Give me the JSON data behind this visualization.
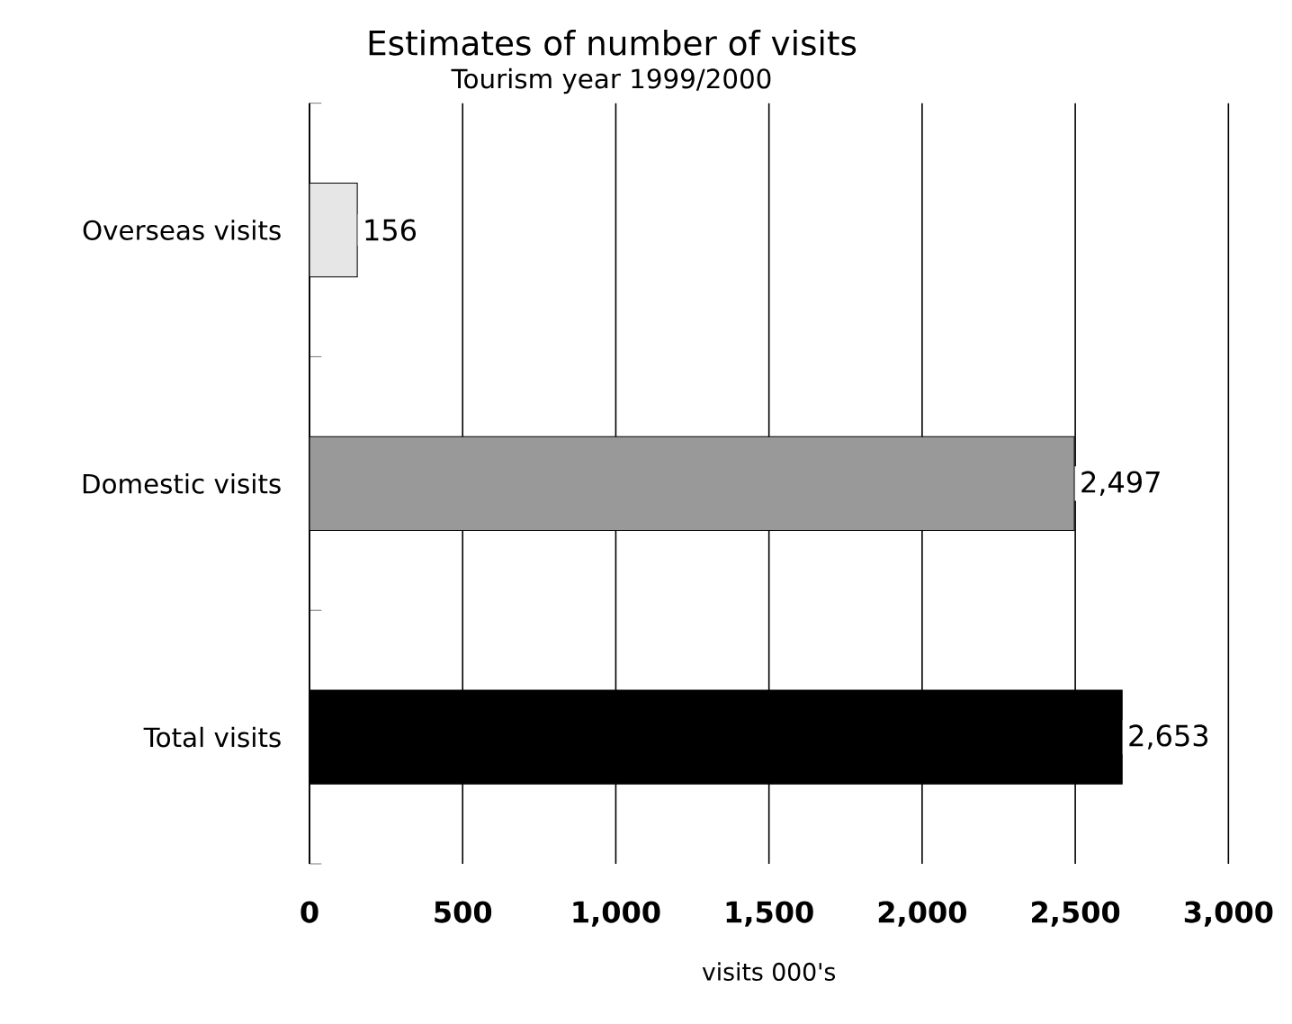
{
  "chart_data": {
    "type": "bar",
    "orientation": "horizontal",
    "title": "Estimates of number of visits",
    "subtitle": "Tourism year  1999/2000",
    "xlabel": "visits 000's",
    "categories": [
      "Overseas visits",
      "Domestic visits",
      "Total visits"
    ],
    "values": [
      156,
      2497,
      2653
    ],
    "colors": [
      "#e6e6e6",
      "#999999",
      "#000000"
    ],
    "value_labels": [
      "156",
      "2,497",
      "2,653"
    ],
    "xlim": [
      0,
      3000
    ],
    "xticks": [
      0,
      500,
      {
        "value": 1000,
        "label": "1,000"
      },
      {
        "value": 1500,
        "label": "1,500"
      },
      {
        "value": 2000,
        "label": "2,000"
      },
      {
        "value": 2500,
        "label": "2,500"
      },
      {
        "value": 3000,
        "label": "3,000"
      }
    ],
    "grid": "x"
  }
}
